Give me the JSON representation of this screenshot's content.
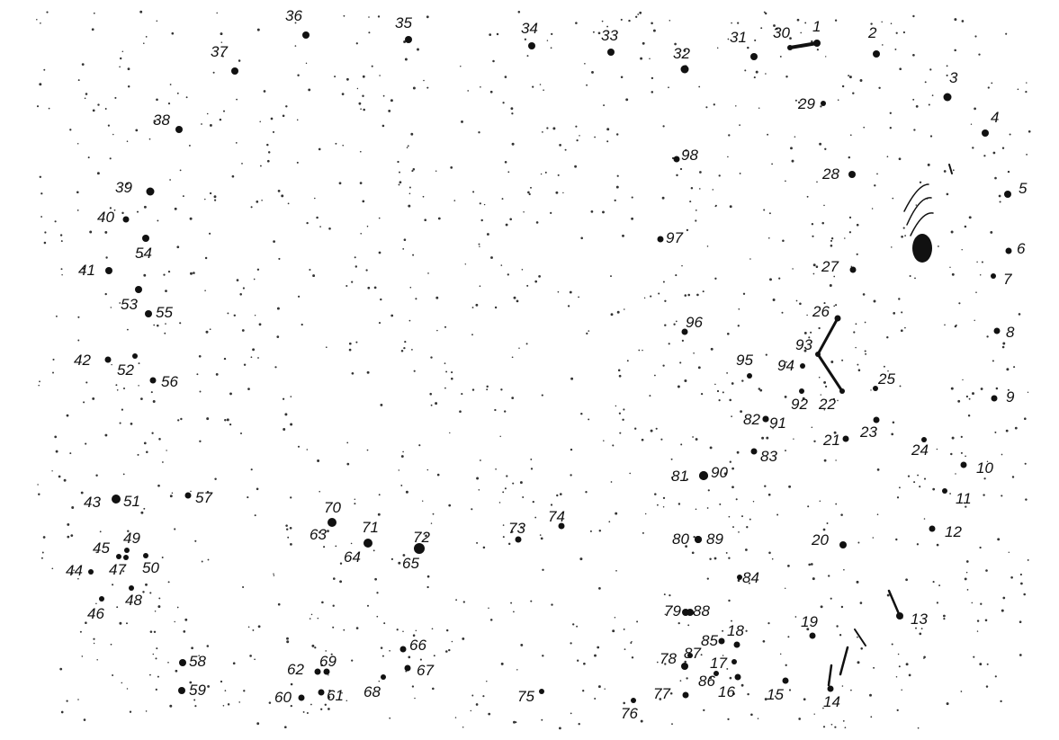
{
  "puzzle": {
    "dots": [
      {
        "n": "1"
      },
      {
        "n": "2"
      },
      {
        "n": "3"
      },
      {
        "n": "4"
      },
      {
        "n": "5"
      },
      {
        "n": "6"
      },
      {
        "n": "7"
      },
      {
        "n": "8"
      },
      {
        "n": "9"
      },
      {
        "n": "10"
      },
      {
        "n": "11"
      },
      {
        "n": "12"
      },
      {
        "n": "13"
      },
      {
        "n": "14"
      },
      {
        "n": "15"
      },
      {
        "n": "16"
      },
      {
        "n": "17"
      },
      {
        "n": "18"
      },
      {
        "n": "19"
      },
      {
        "n": "20"
      },
      {
        "n": "21"
      },
      {
        "n": "22"
      },
      {
        "n": "23"
      },
      {
        "n": "24"
      },
      {
        "n": "25"
      },
      {
        "n": "26"
      },
      {
        "n": "27"
      },
      {
        "n": "28"
      },
      {
        "n": "29"
      },
      {
        "n": "30"
      },
      {
        "n": "31"
      },
      {
        "n": "32"
      },
      {
        "n": "33"
      },
      {
        "n": "34"
      },
      {
        "n": "35"
      },
      {
        "n": "36"
      },
      {
        "n": "37"
      },
      {
        "n": "38"
      },
      {
        "n": "39"
      },
      {
        "n": "40"
      },
      {
        "n": "41"
      },
      {
        "n": "42"
      },
      {
        "n": "43"
      },
      {
        "n": "44"
      },
      {
        "n": "45"
      },
      {
        "n": "46"
      },
      {
        "n": "47"
      },
      {
        "n": "48"
      },
      {
        "n": "49"
      },
      {
        "n": "50"
      },
      {
        "n": "51"
      },
      {
        "n": "52"
      },
      {
        "n": "53"
      },
      {
        "n": "54"
      },
      {
        "n": "55"
      },
      {
        "n": "56"
      },
      {
        "n": "57"
      },
      {
        "n": "58"
      },
      {
        "n": "59"
      },
      {
        "n": "60"
      },
      {
        "n": "61"
      },
      {
        "n": "62"
      },
      {
        "n": "63"
      },
      {
        "n": "64"
      },
      {
        "n": "65"
      },
      {
        "n": "66"
      },
      {
        "n": "67"
      },
      {
        "n": "68"
      },
      {
        "n": "69"
      },
      {
        "n": "70"
      },
      {
        "n": "71"
      },
      {
        "n": "72"
      },
      {
        "n": "73"
      },
      {
        "n": "74"
      },
      {
        "n": "75"
      },
      {
        "n": "76"
      },
      {
        "n": "77"
      },
      {
        "n": "78"
      },
      {
        "n": "79"
      },
      {
        "n": "80"
      },
      {
        "n": "81"
      },
      {
        "n": "82"
      },
      {
        "n": "83"
      },
      {
        "n": "84"
      },
      {
        "n": "85"
      },
      {
        "n": "86"
      },
      {
        "n": "87"
      },
      {
        "n": "88"
      },
      {
        "n": "89"
      },
      {
        "n": "90"
      },
      {
        "n": "91"
      },
      {
        "n": "92"
      },
      {
        "n": "93"
      },
      {
        "n": "94"
      },
      {
        "n": "95"
      },
      {
        "n": "96"
      },
      {
        "n": "97"
      },
      {
        "n": "98"
      }
    ],
    "colors": {
      "ink": "#111111",
      "paper": "#ffffff",
      "speck": "#333333"
    }
  }
}
